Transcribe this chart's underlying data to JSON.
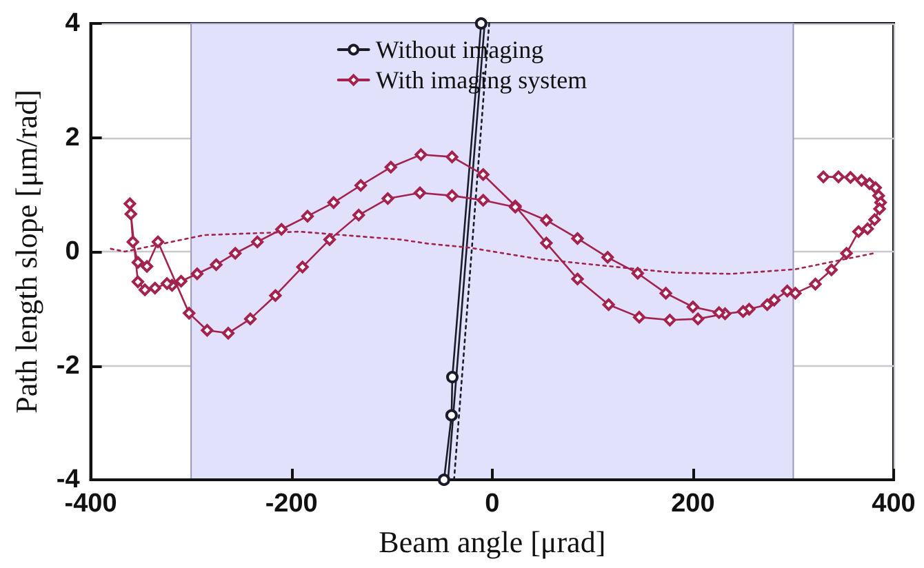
{
  "chart_data": {
    "type": "line",
    "xlabel": "Beam angle [μrad]",
    "ylabel": "Path length slope [μm/rad]",
    "xlim": [
      -400,
      400
    ],
    "xticks": [
      -400,
      -200,
      0,
      200,
      400
    ],
    "ylim": [
      -4,
      4
    ],
    "yticks": [
      -4,
      -2,
      0,
      2,
      4
    ],
    "grid": true,
    "legend": "top",
    "bands": [
      {
        "axis": "x",
        "from": -300,
        "to": 300,
        "color": "#e1e1fb"
      }
    ],
    "series": [
      {
        "name": "Without imaging",
        "color": "#1a1a2a",
        "marker": "circle",
        "line_style": "solid",
        "x": [
          -48,
          -40.5,
          -39.7,
          -11
        ],
        "values": [
          -4,
          -2.87,
          -2.2,
          4
        ]
      },
      {
        "color": "#1a1a2a",
        "marker": "none",
        "line_style": "solid",
        "x": [
          -44,
          -7.5
        ],
        "values": [
          -4,
          4
        ]
      },
      {
        "color": "#1a1a2a",
        "marker": "none",
        "line_style": "dotted",
        "x": [
          -38,
          -3
        ],
        "values": [
          -4,
          4
        ]
      },
      {
        "name": "With imaging system",
        "color": "#a3224e",
        "marker": "diamond",
        "line_style": "solid",
        "x": [
          330,
          345,
          357,
          368,
          376,
          382,
          385,
          387,
          386,
          381,
          374,
          365,
          353,
          338,
          322,
          302,
          294,
          281,
          274,
          256,
          250,
          232,
          205,
          177,
          146.5,
          116,
          85,
          54,
          23,
          -9,
          -40,
          -71,
          -101,
          -131,
          -158,
          -184,
          -210,
          -234,
          -256,
          -275,
          -294,
          -310,
          -319,
          -324,
          -336,
          -346,
          -353,
          -361,
          -360,
          -358,
          -353,
          -344,
          -333,
          -302,
          -284,
          -263,
          -241,
          -216,
          -189,
          -162,
          -133,
          -104,
          -72,
          -40,
          -9,
          23,
          54,
          85,
          115,
          145,
          173,
          200,
          226
        ],
        "values": [
          1.31,
          1.31,
          1.3,
          1.25,
          1.19,
          1.12,
          0.98,
          0.86,
          0.75,
          0.56,
          0.4,
          0.35,
          -0.03,
          -0.32,
          -0.57,
          -0.73,
          -0.69,
          -0.85,
          -0.93,
          -1.01,
          -1.05,
          -1.09,
          -1.18,
          -1.2,
          -1.15,
          -0.93,
          -0.48,
          0.15,
          0.8,
          1.35,
          1.66,
          1.7,
          1.48,
          1.16,
          0.86,
          0.62,
          0.39,
          0.17,
          -0.03,
          -0.23,
          -0.39,
          -0.52,
          -0.59,
          -0.56,
          -0.64,
          -0.67,
          -0.53,
          0.84,
          0.66,
          0.17,
          -0.19,
          -0.26,
          0.17,
          -1.08,
          -1.38,
          -1.43,
          -1.18,
          -0.77,
          -0.27,
          0.21,
          0.64,
          0.93,
          1.03,
          0.98,
          0.9,
          0.78,
          0.55,
          0.23,
          -0.1,
          -0.38,
          -0.73,
          -0.97,
          -1.07
        ]
      },
      {
        "color": "#a3224e",
        "marker": "none",
        "line_style": "dotted",
        "x": [
          -380,
          -366,
          -287,
          -192,
          -91,
          -64,
          -23,
          46,
          169,
          183,
          238,
          302,
          380
        ],
        "values": [
          0.05,
          0.0,
          0.29,
          0.35,
          0.21,
          0.14,
          0.07,
          -0.13,
          -0.35,
          -0.37,
          -0.39,
          -0.31,
          -0.03
        ]
      }
    ]
  }
}
